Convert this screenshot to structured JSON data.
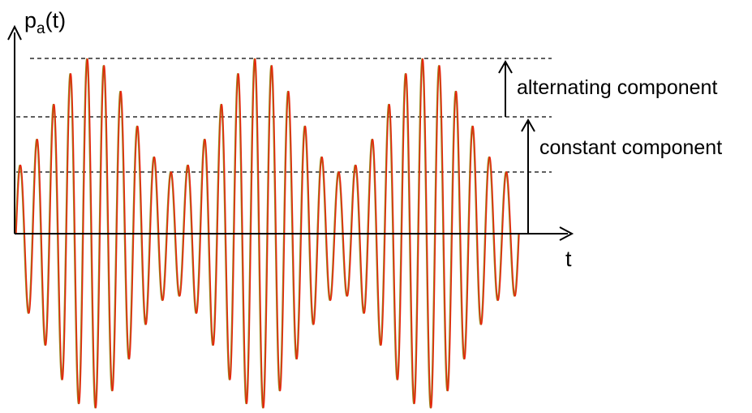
{
  "labels": {
    "y_axis_main": "p",
    "y_axis_sub": "a",
    "y_axis_suffix": "(t)",
    "x_axis": "t",
    "alternating": "alternating component",
    "constant": "constant component"
  },
  "colors": {
    "waveform": "#e8220c",
    "waveform_shadow": "#9a8a20",
    "axes": "#000000",
    "guides": "#000000"
  },
  "signal": {
    "description_free": true,
    "carrier_cycles": 30,
    "envelope_periods": 3,
    "envelope_min_ratio": 0.35
  }
}
